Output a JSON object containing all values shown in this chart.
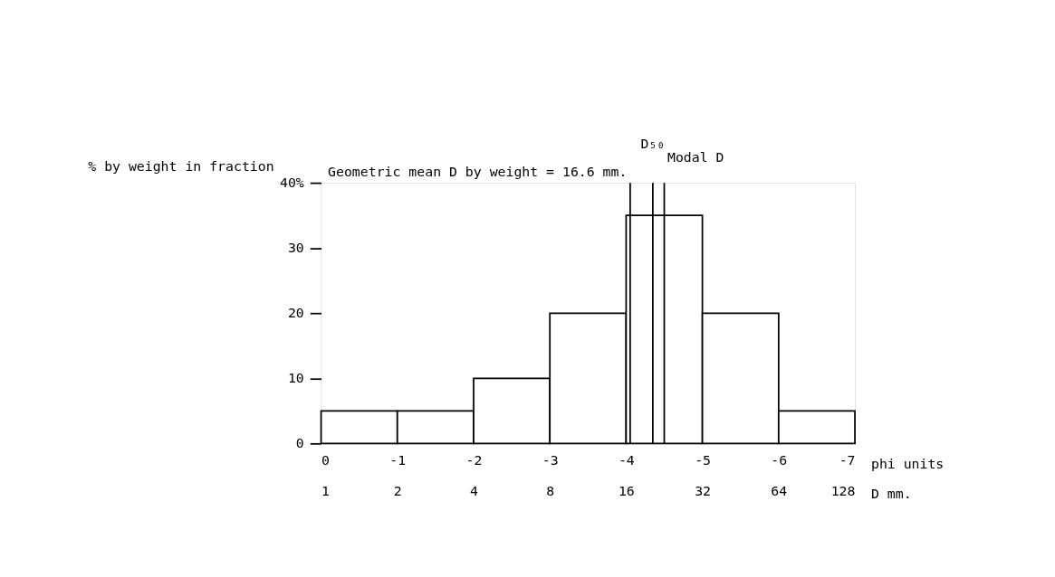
{
  "chart_data": {
    "type": "histogram",
    "bins": [
      0,
      -1,
      -2,
      -3,
      -4,
      -5,
      -6,
      -7
    ],
    "values": [
      5,
      5,
      10,
      20,
      35,
      20,
      5
    ],
    "color": "#ffffff",
    "xlim": [
      0,
      -7
    ],
    "xticks": [
      0,
      -1,
      -2,
      -3,
      -4,
      -5,
      -6,
      -7
    ],
    "xlabel": "phi units",
    "x2lim": [
      1,
      128
    ],
    "x2ticks": [
      1,
      2,
      4,
      8,
      16,
      32,
      64,
      128
    ],
    "x2label": "D mm.",
    "log": "x2",
    "ylim": [
      0,
      40
    ],
    "yticks": [
      0,
      10,
      20,
      30,
      {
        "value": 40,
        "label": "40%"
      }
    ],
    "ylabel": "% by weight in fraction",
    "grid": false,
    "ref_lines": [
      {
        "axis": "x2",
        "value": 16.6,
        "label": "Geometric mean D by weight = 16.6 mm.",
        "color": "#000000"
      },
      {
        "axis": "x",
        "value": -4.35,
        "label": "D₅₀",
        "color": "#000000"
      },
      {
        "axis": "x",
        "value": -4.5,
        "label": "Modal D",
        "color": "#000000"
      }
    ]
  }
}
